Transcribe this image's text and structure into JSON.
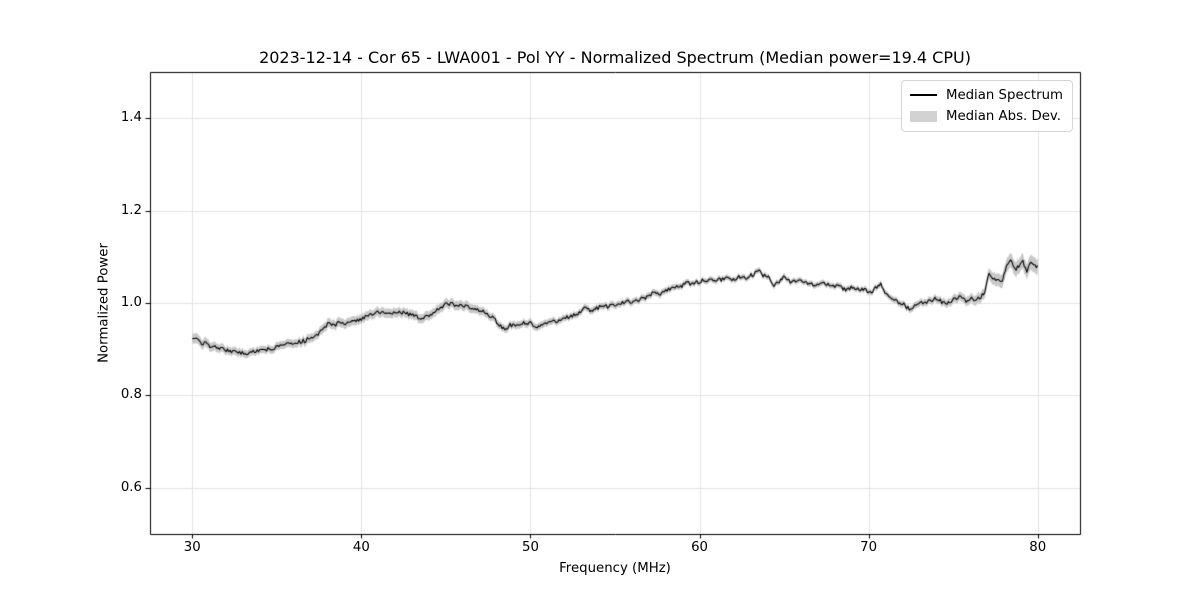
{
  "figure": {
    "background": "#ffffff",
    "spine_color": "#000000",
    "grid_color": "#e3e3e3",
    "tick_color": "#000000"
  },
  "chart_data": {
    "type": "line",
    "title": "2023-12-14 - Cor 65 - LWA001 - Pol YY - Normalized Spectrum (Median power=19.4 CPU)",
    "xlabel": "Frequency (MHz)",
    "ylabel": "Normalized Power",
    "xlim": [
      27.5,
      82.5
    ],
    "ylim": [
      0.5,
      1.5
    ],
    "grid": true,
    "xticks": [
      {
        "value": 30,
        "label": "30"
      },
      {
        "value": 40,
        "label": "40"
      },
      {
        "value": 50,
        "label": "50"
      },
      {
        "value": 60,
        "label": "60"
      },
      {
        "value": 70,
        "label": "70"
      },
      {
        "value": 80,
        "label": "80"
      }
    ],
    "yticks": [
      {
        "value": 0.6,
        "label": "0.6"
      },
      {
        "value": 0.8,
        "label": "0.8"
      },
      {
        "value": 1.0,
        "label": "1.0"
      },
      {
        "value": 1.2,
        "label": "1.2"
      },
      {
        "value": 1.4,
        "label": "1.4"
      }
    ],
    "legend": {
      "position": "upper right",
      "entries": [
        {
          "label": "Median Spectrum",
          "type": "line",
          "color": "#000000"
        },
        {
          "label": "Median Abs. Dev.",
          "type": "patch",
          "color": "#d2d2d2"
        }
      ]
    },
    "series": [
      {
        "name": "Median Spectrum",
        "color": "#000000",
        "linewidth": 1.1,
        "points": [
          [
            30.0,
            0.921
          ],
          [
            30.2,
            0.927
          ],
          [
            30.4,
            0.915
          ],
          [
            30.6,
            0.912
          ],
          [
            30.8,
            0.916
          ],
          [
            31.0,
            0.908
          ],
          [
            31.3,
            0.905
          ],
          [
            31.6,
            0.901
          ],
          [
            32.0,
            0.898
          ],
          [
            32.4,
            0.894
          ],
          [
            32.8,
            0.893
          ],
          [
            33.2,
            0.892
          ],
          [
            33.6,
            0.894
          ],
          [
            34.0,
            0.896
          ],
          [
            34.2,
            0.902
          ],
          [
            34.5,
            0.899
          ],
          [
            35.0,
            0.904
          ],
          [
            35.5,
            0.907
          ],
          [
            35.8,
            0.913
          ],
          [
            36.2,
            0.915
          ],
          [
            36.6,
            0.918
          ],
          [
            37.0,
            0.923
          ],
          [
            37.4,
            0.93
          ],
          [
            37.7,
            0.941
          ],
          [
            38.0,
            0.956
          ],
          [
            38.2,
            0.951
          ],
          [
            38.5,
            0.954
          ],
          [
            38.8,
            0.958
          ],
          [
            39.1,
            0.955
          ],
          [
            39.4,
            0.96
          ],
          [
            39.7,
            0.963
          ],
          [
            40.0,
            0.964
          ],
          [
            40.3,
            0.97
          ],
          [
            40.6,
            0.976
          ],
          [
            41.0,
            0.982
          ],
          [
            41.3,
            0.979
          ],
          [
            41.6,
            0.981
          ],
          [
            42.0,
            0.977
          ],
          [
            42.4,
            0.979
          ],
          [
            42.8,
            0.976
          ],
          [
            43.2,
            0.973
          ],
          [
            43.5,
            0.966
          ],
          [
            43.8,
            0.969
          ],
          [
            44.2,
            0.975
          ],
          [
            44.6,
            0.99
          ],
          [
            45.0,
            0.997
          ],
          [
            45.3,
            0.999
          ],
          [
            45.6,
            0.994
          ],
          [
            46.0,
            0.993
          ],
          [
            46.4,
            0.992
          ],
          [
            46.8,
            0.988
          ],
          [
            47.2,
            0.982
          ],
          [
            47.6,
            0.973
          ],
          [
            48.0,
            0.96
          ],
          [
            48.3,
            0.947
          ],
          [
            48.5,
            0.941
          ],
          [
            48.8,
            0.951
          ],
          [
            49.2,
            0.954
          ],
          [
            49.6,
            0.957
          ],
          [
            50.0,
            0.956
          ],
          [
            50.4,
            0.95
          ],
          [
            50.8,
            0.955
          ],
          [
            51.2,
            0.959
          ],
          [
            51.6,
            0.962
          ],
          [
            52.0,
            0.967
          ],
          [
            52.5,
            0.972
          ],
          [
            53.0,
            0.979
          ],
          [
            53.2,
            0.988
          ],
          [
            53.5,
            0.984
          ],
          [
            54.0,
            0.99
          ],
          [
            54.5,
            0.992
          ],
          [
            55.0,
            0.996
          ],
          [
            55.5,
            1.0
          ],
          [
            56.0,
            1.004
          ],
          [
            56.5,
            1.008
          ],
          [
            57.0,
            1.014
          ],
          [
            57.3,
            1.024
          ],
          [
            57.6,
            1.018
          ],
          [
            58.0,
            1.026
          ],
          [
            58.5,
            1.032
          ],
          [
            59.0,
            1.038
          ],
          [
            59.3,
            1.044
          ],
          [
            59.6,
            1.041
          ],
          [
            60.0,
            1.047
          ],
          [
            60.4,
            1.05
          ],
          [
            60.8,
            1.047
          ],
          [
            61.2,
            1.051
          ],
          [
            61.6,
            1.053
          ],
          [
            62.0,
            1.049
          ],
          [
            62.4,
            1.057
          ],
          [
            62.8,
            1.056
          ],
          [
            63.1,
            1.06
          ],
          [
            63.5,
            1.068
          ],
          [
            63.8,
            1.059
          ],
          [
            64.1,
            1.055
          ],
          [
            64.4,
            1.04
          ],
          [
            64.7,
            1.047
          ],
          [
            65.0,
            1.058
          ],
          [
            65.4,
            1.046
          ],
          [
            65.8,
            1.05
          ],
          [
            66.2,
            1.043
          ],
          [
            66.6,
            1.04
          ],
          [
            67.0,
            1.042
          ],
          [
            67.4,
            1.044
          ],
          [
            67.8,
            1.038
          ],
          [
            68.2,
            1.036
          ],
          [
            68.6,
            1.03
          ],
          [
            69.0,
            1.033
          ],
          [
            69.4,
            1.03
          ],
          [
            69.8,
            1.027
          ],
          [
            70.2,
            1.026
          ],
          [
            70.7,
            1.043
          ],
          [
            71.0,
            1.02
          ],
          [
            71.3,
            1.008
          ],
          [
            71.6,
            1.003
          ],
          [
            72.0,
            1.0
          ],
          [
            72.3,
            0.988
          ],
          [
            72.6,
            0.991
          ],
          [
            73.1,
            1.0
          ],
          [
            73.5,
            1.004
          ],
          [
            74.0,
            1.01
          ],
          [
            74.3,
            1.003
          ],
          [
            74.6,
            1.0
          ],
          [
            75.0,
            1.008
          ],
          [
            75.4,
            1.012
          ],
          [
            75.7,
            1.004
          ],
          [
            76.0,
            1.01
          ],
          [
            76.3,
            1.008
          ],
          [
            76.6,
            1.013
          ],
          [
            76.9,
            1.025
          ],
          [
            77.1,
            1.068
          ],
          [
            77.35,
            1.048
          ],
          [
            77.6,
            1.055
          ],
          [
            77.9,
            1.048
          ],
          [
            78.1,
            1.075
          ],
          [
            78.4,
            1.096
          ],
          [
            78.6,
            1.07
          ],
          [
            78.9,
            1.08
          ],
          [
            79.1,
            1.09
          ],
          [
            79.35,
            1.07
          ],
          [
            79.6,
            1.088
          ],
          [
            79.8,
            1.085
          ],
          [
            80.0,
            1.078
          ]
        ],
        "noise_amplitude": 0.0045
      },
      {
        "name": "Median Abs. Dev.",
        "color": "#c9c9c9",
        "mad_points": [
          [
            30,
            0.011
          ],
          [
            32,
            0.009
          ],
          [
            34,
            0.008
          ],
          [
            36,
            0.009
          ],
          [
            38,
            0.01
          ],
          [
            40,
            0.01
          ],
          [
            42,
            0.01
          ],
          [
            44,
            0.01
          ],
          [
            46,
            0.01
          ],
          [
            48,
            0.008
          ],
          [
            50,
            0.008
          ],
          [
            52,
            0.007
          ],
          [
            54,
            0.007
          ],
          [
            56,
            0.007
          ],
          [
            58,
            0.007
          ],
          [
            60,
            0.006
          ],
          [
            62,
            0.006
          ],
          [
            64,
            0.006
          ],
          [
            66,
            0.006
          ],
          [
            68,
            0.006
          ],
          [
            70,
            0.006
          ],
          [
            72,
            0.007
          ],
          [
            74,
            0.008
          ],
          [
            76,
            0.01
          ],
          [
            77,
            0.012
          ],
          [
            78,
            0.015
          ],
          [
            79,
            0.016
          ],
          [
            80,
            0.017
          ]
        ]
      }
    ]
  }
}
